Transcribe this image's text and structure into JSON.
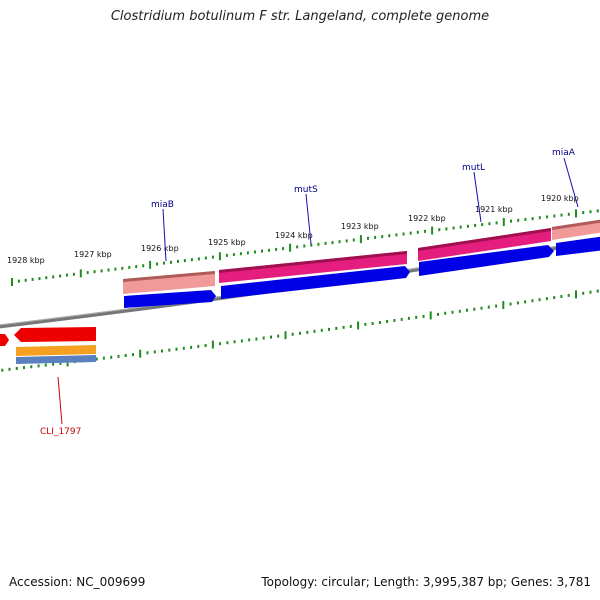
{
  "title": "Clostridium botulinum F str. Langeland, complete genome",
  "footer": {
    "accession": "Accession: NC_009699",
    "summary": "Topology: circular; Length: 3,995,387 bp; Genes: 3,781"
  },
  "colors": {
    "backbone": "#808080",
    "tick": "#1f8c1f",
    "cds_forward": "#0000ee",
    "cds_reverse": "#ee0000",
    "gene_forward": "#e0187a",
    "gene_light": "#f08c8c",
    "label_forward": "#00008b",
    "label_reverse": "#cc0000",
    "orange": "#f5a020",
    "steelblue": "#5a80c0"
  },
  "tick_labels": [
    "1928 kbp",
    "1927 kbp",
    "1926 kbp",
    "1925 kbp",
    "1924 kbp",
    "1923 kbp",
    "1922 kbp",
    "1921 kbp",
    "1920 kbp"
  ],
  "gene_labels": [
    {
      "text": "miaB",
      "strand": "forward"
    },
    {
      "text": "mutS",
      "strand": "forward"
    },
    {
      "text": "mutL",
      "strand": "forward"
    },
    {
      "text": "miaA",
      "strand": "forward"
    },
    {
      "text": "CLI_1797",
      "strand": "reverse"
    }
  ]
}
